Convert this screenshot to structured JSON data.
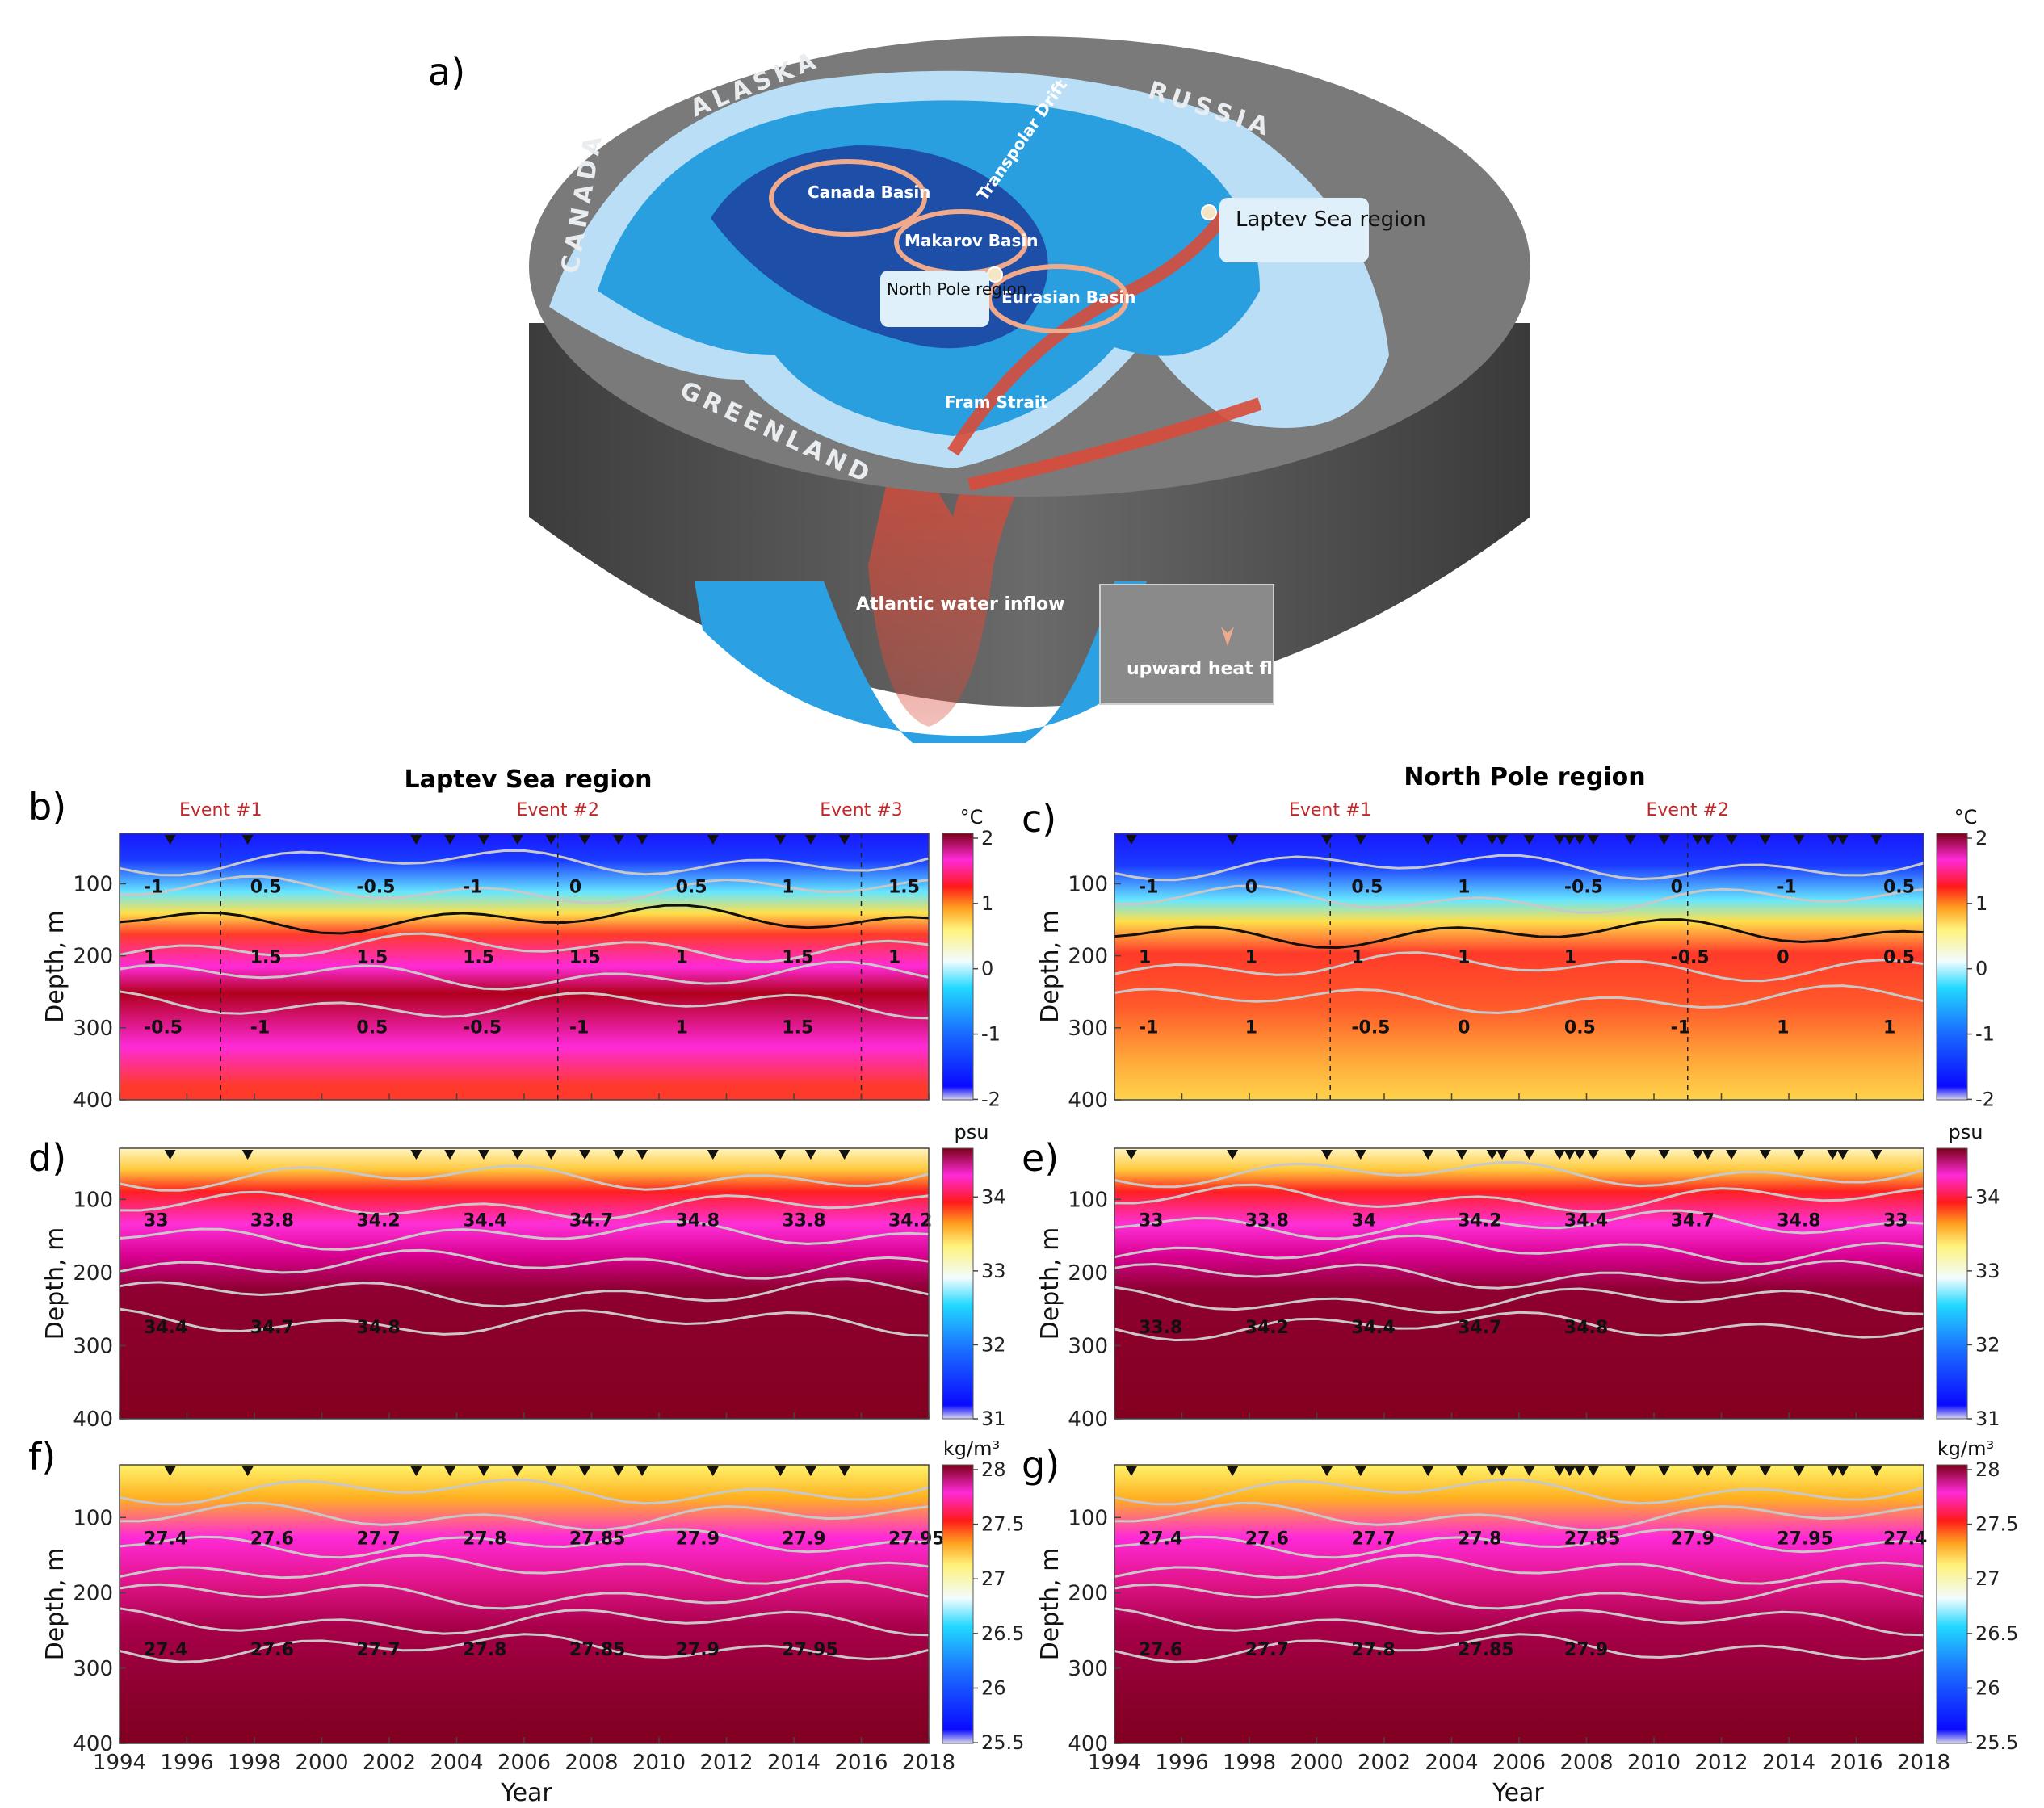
{
  "figure": {
    "panel_labels": [
      "a)",
      "b)",
      "c)",
      "d)",
      "e)",
      "f)",
      "g)"
    ],
    "column_titles": [
      "Laptev Sea region",
      "North Pole region"
    ]
  },
  "map": {
    "land_labels": [
      "ALASKA",
      "RUSSIA",
      "CANADA",
      "GREENLAND"
    ],
    "basins": [
      "Canada Basin",
      "Makarov Basin",
      "Eurasian Basin",
      "Fram Strait",
      "Transpolar Drift"
    ],
    "callouts": [
      "Laptev Sea region",
      "North Pole region"
    ],
    "inflow_label": "Atlantic water inflow",
    "legend_label": "upward heat flux",
    "colors": {
      "land": "#7b7b7b",
      "shelf": "#b9def5",
      "ocean": "#2a9fe0",
      "deep": "#1e4fa8",
      "atlantic": "#d84b3a",
      "rim": "#4d4d4d"
    }
  },
  "axes": {
    "depth_label": "Depth, m",
    "year_label": "Year",
    "depth_ticks": [
      "100",
      "200",
      "300",
      "400"
    ],
    "year_ticks": [
      "1994",
      "1996",
      "1998",
      "2000",
      "2002",
      "2004",
      "2006",
      "2008",
      "2010",
      "2012",
      "2014",
      "2016",
      "2018"
    ]
  },
  "events_left": [
    "Event #1",
    "Event #2",
    "Event #3"
  ],
  "events_right": [
    "Event #1",
    "Event #2"
  ],
  "colorbars": {
    "temp": {
      "unit": "°C",
      "ticks": [
        "2",
        "1",
        "0",
        "-1",
        "-2"
      ]
    },
    "salt": {
      "unit": "psu",
      "ticks": [
        "34",
        "33",
        "32",
        "31"
      ]
    },
    "dens": {
      "unit": "kg/m³",
      "ticks": [
        "28",
        "27.5",
        "27",
        "26.5",
        "26",
        "25.5"
      ]
    }
  },
  "chart_data": [
    {
      "id": "b",
      "type": "heatmap",
      "title": "Laptev Sea region",
      "variable": "temperature",
      "xlabel": "Year",
      "ylabel": "Depth, m",
      "xlim": [
        1994,
        2018
      ],
      "ylim": [
        400,
        30
      ],
      "color_range": [
        -2,
        2
      ],
      "unit": "°C",
      "event_years": [
        1997,
        2007,
        2016
      ],
      "contour_levels": [
        "-1",
        "-0.5",
        "0",
        "0.5",
        "1",
        "1.5"
      ],
      "contour_labels": [
        "-1",
        "0.5",
        "-0.5",
        "-1",
        "0",
        "0.5",
        "1",
        "1.5",
        "1",
        "1.5",
        "1.5",
        "1.5",
        "1.5",
        "1",
        "1.5",
        "1",
        "-0.5",
        "-1",
        "0.5",
        "-0.5",
        "-1",
        "1",
        "1.5"
      ],
      "profiles_t": [
        1995.5,
        1997.8,
        2002.8,
        2003.8,
        2004.8,
        2005.8,
        2006.8,
        2007.8,
        2008.8,
        2009.5,
        2011.6,
        2013.6,
        2014.5,
        2015.5
      ]
    },
    {
      "id": "c",
      "type": "heatmap",
      "title": "North Pole region",
      "variable": "temperature",
      "xlabel": "Year",
      "ylabel": "Depth, m",
      "xlim": [
        1994,
        2018
      ],
      "ylim": [
        400,
        30
      ],
      "color_range": [
        -2,
        2
      ],
      "unit": "°C",
      "event_years": [
        2000.4,
        2011
      ],
      "contour_levels": [
        "-1",
        "-0.5",
        "0",
        "0.5",
        "1"
      ],
      "contour_labels": [
        "-1",
        "0",
        "0.5",
        "1",
        "-0.5",
        "0",
        "-1",
        "0.5",
        "1",
        "1",
        "1",
        "1",
        "1",
        "-0.5",
        "0",
        "0.5",
        "-1",
        "1",
        "-0.5",
        "0",
        "0.5",
        "-1",
        "1",
        "1"
      ],
      "profiles_t": [
        1994.5,
        1997.5,
        2000.3,
        2001.3,
        2003.3,
        2004.3,
        2005.2,
        2005.5,
        2006.3,
        2007.2,
        2007.5,
        2007.8,
        2008.2,
        2009.3,
        2010.3,
        2011.3,
        2011.6,
        2012.3,
        2013.3,
        2014.3,
        2015.3,
        2015.6,
        2016.6
      ]
    },
    {
      "id": "d",
      "type": "heatmap",
      "variable": "salinity",
      "xlabel": "Year",
      "ylabel": "Depth, m",
      "xlim": [
        1994,
        2018
      ],
      "ylim": [
        400,
        30
      ],
      "color_range": [
        30.7,
        34.9
      ],
      "unit": "psu",
      "contour_levels": [
        "33",
        "33.8",
        "34.2",
        "34.4",
        "34.7",
        "34.8"
      ],
      "contour_labels": [
        "33",
        "33.8",
        "34.2",
        "34.4",
        "34.7",
        "34.8",
        "33.8",
        "34.2",
        "34.4",
        "34.7",
        "34.8"
      ]
    },
    {
      "id": "e",
      "type": "heatmap",
      "variable": "salinity",
      "xlabel": "Year",
      "ylabel": "Depth, m",
      "xlim": [
        1994,
        2018
      ],
      "ylim": [
        400,
        30
      ],
      "color_range": [
        30.7,
        34.9
      ],
      "unit": "psu",
      "contour_levels": [
        "33",
        "33.8",
        "34",
        "34.2",
        "34.4",
        "34.7",
        "34.8"
      ],
      "contour_labels": [
        "33",
        "33.8",
        "34",
        "34.2",
        "34.4",
        "34.7",
        "34.8",
        "33",
        "33.8",
        "34.2",
        "34.4",
        "34.7",
        "34.8"
      ]
    },
    {
      "id": "f",
      "type": "heatmap",
      "variable": "density",
      "xlabel": "Year",
      "ylabel": "Depth, m",
      "xlim": [
        1994,
        2018
      ],
      "ylim": [
        400,
        30
      ],
      "color_range": [
        25.5,
        28
      ],
      "unit": "kg/m³",
      "contour_levels": [
        "27.4",
        "27.6",
        "27.7",
        "27.8",
        "27.85",
        "27.9",
        "27.95"
      ],
      "contour_labels": [
        "27.4",
        "27.6",
        "27.7",
        "27.8",
        "27.85",
        "27.9",
        "27.9",
        "27.95",
        "27.4",
        "27.6",
        "27.7",
        "27.8",
        "27.85",
        "27.9",
        "27.95"
      ]
    },
    {
      "id": "g",
      "type": "heatmap",
      "variable": "density",
      "xlabel": "Year",
      "ylabel": "Depth, m",
      "xlim": [
        1994,
        2018
      ],
      "ylim": [
        400,
        30
      ],
      "color_range": [
        25.3,
        28
      ],
      "unit": "kg/m³",
      "contour_levels": [
        "27.4",
        "27.6",
        "27.7",
        "27.8",
        "27.85",
        "27.9",
        "27.95"
      ],
      "contour_labels": [
        "27.4",
        "27.6",
        "27.7",
        "27.8",
        "27.85",
        "27.9",
        "27.95",
        "27.4",
        "27.6",
        "27.7",
        "27.8",
        "27.85",
        "27.9"
      ]
    }
  ]
}
